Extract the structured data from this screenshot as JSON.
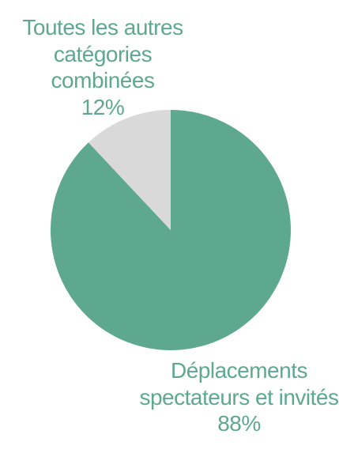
{
  "chart_data": {
    "type": "pie",
    "slices": [
      {
        "label_lines": [
          "Déplacements",
          "spectateurs et invités"
        ],
        "value": 88,
        "value_label": "88%",
        "color": "#5fa890"
      },
      {
        "label_lines": [
          "Toutes les autres",
          "catégories combinées"
        ],
        "value": 12,
        "value_label": "12%",
        "color": "#d9d9d9"
      }
    ],
    "label_color": "#5fa890"
  }
}
